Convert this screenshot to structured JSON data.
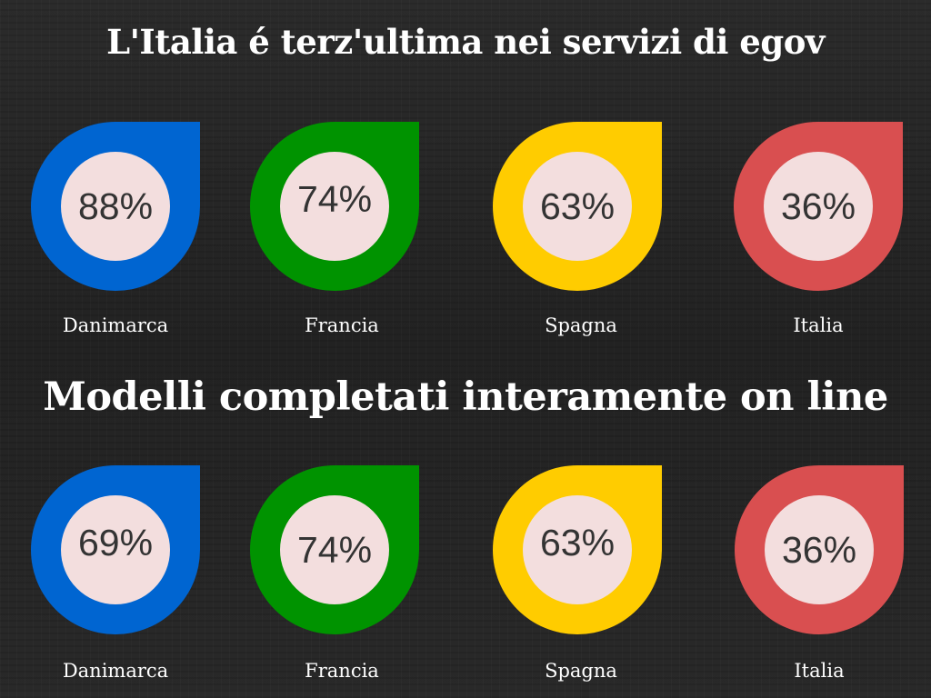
{
  "sections": [
    {
      "title": "L'Italia é terz'ultima nei servizi di egov",
      "items": [
        {
          "country": "Danimarca",
          "value": "88%",
          "color": "#0065d1"
        },
        {
          "country": "Francia",
          "value": "74%",
          "color": "#009300"
        },
        {
          "country": "Spagna",
          "value": "63%",
          "color": "#ffcc00"
        },
        {
          "country": "Italia",
          "value": "36%",
          "color": "#d94f50"
        }
      ]
    },
    {
      "title": "Modelli completati interamente on line",
      "items": [
        {
          "country": "Danimarca",
          "value": "69%",
          "color": "#0065d1"
        },
        {
          "country": "Francia",
          "value": "74%",
          "color": "#009300"
        },
        {
          "country": "Spagna",
          "value": "63%",
          "color": "#ffcc00"
        },
        {
          "country": "Italia",
          "value": "36%",
          "color": "#d94f50"
        }
      ]
    }
  ]
}
